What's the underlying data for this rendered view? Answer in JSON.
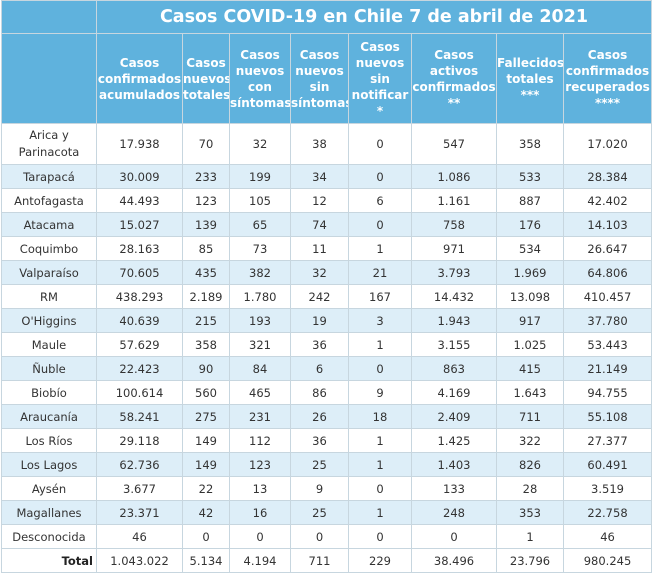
{
  "title": "Casos COVID-19 en Chile 7 de abril de 2021",
  "headers": [
    [
      "Casos",
      "confirmados",
      "acumulados"
    ],
    [
      "Casos",
      "nuevos",
      "totales"
    ],
    [
      "Casos",
      "nuevos",
      "con",
      "síntomas"
    ],
    [
      "Casos",
      "nuevos",
      "sin",
      "síntomas"
    ],
    [
      "Casos",
      "nuevos",
      "sin",
      "notificar",
      "*"
    ],
    [
      "Casos",
      "activos",
      "confirmados",
      "**"
    ],
    [
      "Fallecidos",
      "totales",
      "***"
    ],
    [
      "Casos",
      "confirmados",
      "recuperados",
      "****"
    ]
  ],
  "rows": [
    {
      "region": "Arica y Parinacota",
      "values": [
        "17.938",
        "70",
        "32",
        "38",
        "0",
        "547",
        "358",
        "17.020"
      ]
    },
    {
      "region": "Tarapacá",
      "values": [
        "30.009",
        "233",
        "199",
        "34",
        "0",
        "1.086",
        "533",
        "28.384"
      ]
    },
    {
      "region": "Antofagasta",
      "values": [
        "44.493",
        "123",
        "105",
        "12",
        "6",
        "1.161",
        "887",
        "42.402"
      ]
    },
    {
      "region": "Atacama",
      "values": [
        "15.027",
        "139",
        "65",
        "74",
        "0",
        "758",
        "176",
        "14.103"
      ]
    },
    {
      "region": "Coquimbo",
      "values": [
        "28.163",
        "85",
        "73",
        "11",
        "1",
        "971",
        "534",
        "26.647"
      ]
    },
    {
      "region": "Valparaíso",
      "values": [
        "70.605",
        "435",
        "382",
        "32",
        "21",
        "3.793",
        "1.969",
        "64.806"
      ]
    },
    {
      "region": "RM",
      "values": [
        "438.293",
        "2.189",
        "1.780",
        "242",
        "167",
        "14.432",
        "13.098",
        "410.457"
      ]
    },
    {
      "region": "O'Higgins",
      "values": [
        "40.639",
        "215",
        "193",
        "19",
        "3",
        "1.943",
        "917",
        "37.780"
      ]
    },
    {
      "region": "Maule",
      "values": [
        "57.629",
        "358",
        "321",
        "36",
        "1",
        "3.155",
        "1.025",
        "53.443"
      ]
    },
    {
      "region": "Ñuble",
      "values": [
        "22.423",
        "90",
        "84",
        "6",
        "0",
        "863",
        "415",
        "21.149"
      ]
    },
    {
      "region": "Biobío",
      "values": [
        "100.614",
        "560",
        "465",
        "86",
        "9",
        "4.169",
        "1.643",
        "94.755"
      ]
    },
    {
      "region": "Araucanía",
      "values": [
        "58.241",
        "275",
        "231",
        "26",
        "18",
        "2.409",
        "711",
        "55.108"
      ]
    },
    {
      "region": "Los Ríos",
      "values": [
        "29.118",
        "149",
        "112",
        "36",
        "1",
        "1.425",
        "322",
        "27.377"
      ]
    },
    {
      "region": "Los Lagos",
      "values": [
        "62.736",
        "149",
        "123",
        "25",
        "1",
        "1.403",
        "826",
        "60.491"
      ]
    },
    {
      "region": "Aysén",
      "values": [
        "3.677",
        "22",
        "13",
        "9",
        "0",
        "133",
        "28",
        "3.519"
      ]
    },
    {
      "region": "Magallanes",
      "values": [
        "23.371",
        "42",
        "16",
        "25",
        "1",
        "248",
        "353",
        "22.758"
      ]
    },
    {
      "region": "Desconocida",
      "values": [
        "46",
        "0",
        "0",
        "0",
        "0",
        "0",
        "1",
        "46"
      ]
    }
  ],
  "total": {
    "label": "Total",
    "values": [
      "1.043.022",
      "5.134",
      "4.194",
      "711",
      "229",
      "38.496",
      "23.796",
      "980.245"
    ]
  },
  "colors": {
    "header_bg": "#5fb2dd",
    "stripe": "#ddeef8",
    "border": "#c7d6df"
  }
}
